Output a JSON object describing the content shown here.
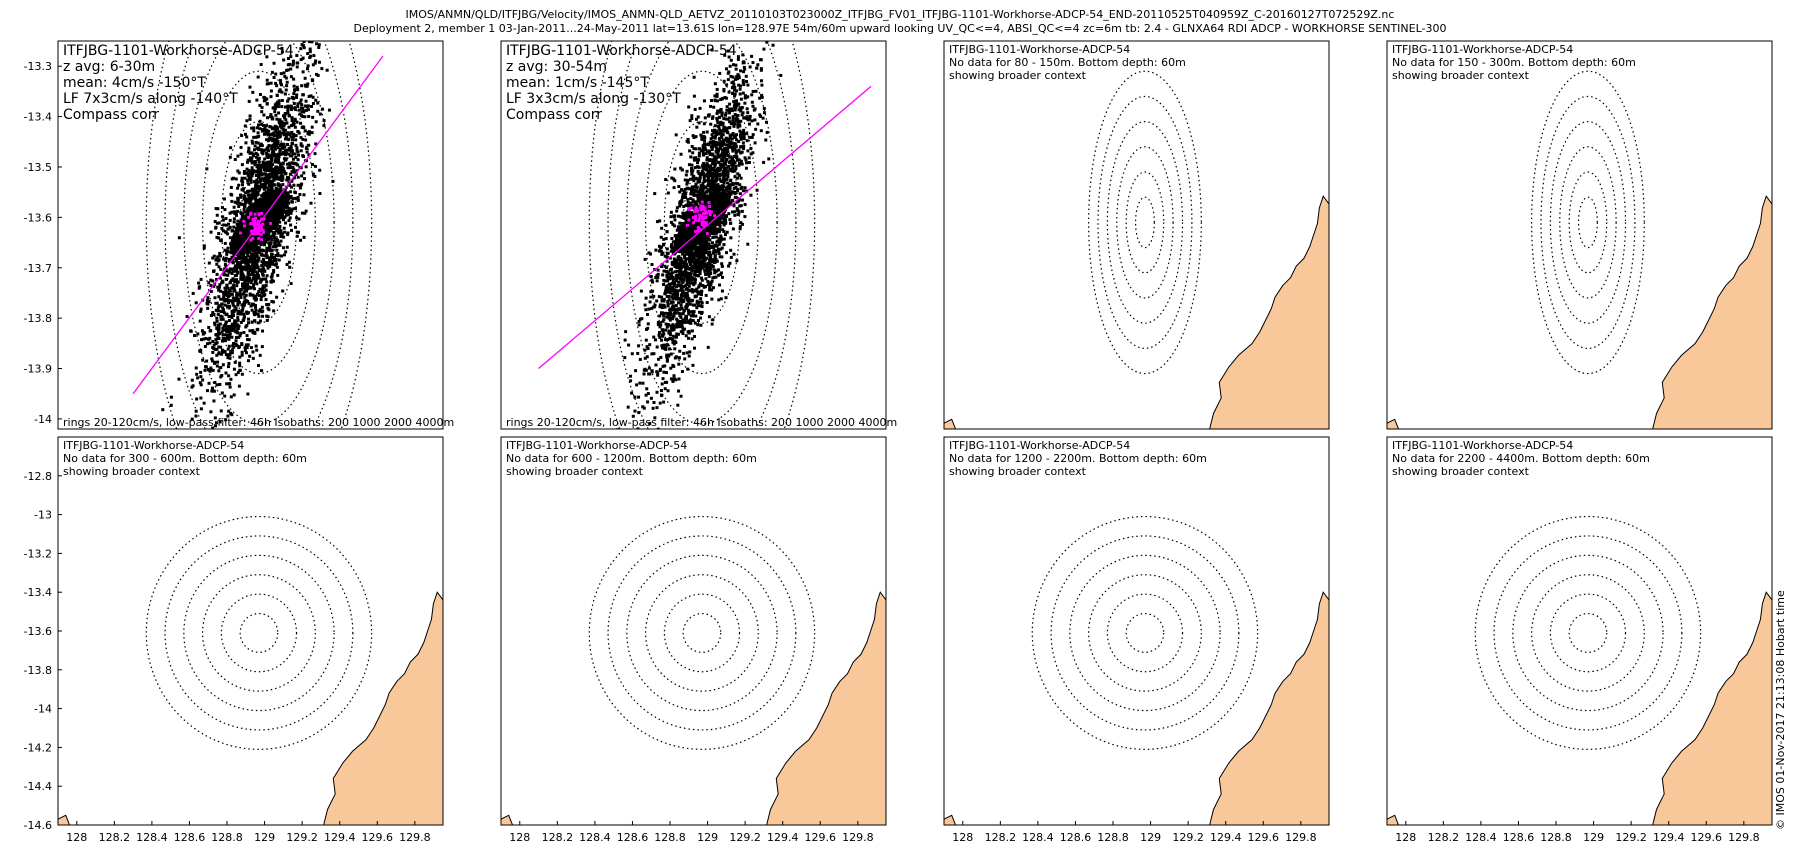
{
  "header": {
    "line1": "IMOS/ANMN/QLD/ITFJBG/Velocity/IMOS_ANMN-QLD_AETVZ_20110103T023000Z_ITFJBG_FV01_ITFJBG-1101-Workhorse-ADCP-54_END-20110525T040959Z_C-20160127T072529Z.nc",
    "line2": "Deployment 2, member 1 03-Jan-2011...24-May-2011 lat=13.61S lon=128.97E 54m/60m upward looking UV_QC<=4, ABSI_QC<=4 zc=6m tb: 2.4 - GLNXA64 RDI ADCP - WORKHORSE SENTINEL-300"
  },
  "credit": "© IMOS 01-Nov-2017 21:13:08 Hobart time",
  "colors": {
    "land": "#f9c89a",
    "vector": "#ff00ff",
    "scatter": "#000000",
    "rings": "#000000"
  },
  "chart_data": [
    {
      "type": "scatter",
      "row": 0,
      "col": 0,
      "title": "ITFJBG-1101-Workhorse-ADCP-54",
      "lines": [
        "z avg: 6-30m",
        "mean: 4cm/s -150°T",
        "LF 7x3cm/s along -140°T",
        "Compass corr"
      ],
      "footer": "rings 20-120cm/s, low-pass filter: 46h Isobaths: 200 1000 2000 4000m",
      "xlim": [
        127.9,
        129.95
      ],
      "ylim": [
        -14.02,
        -13.25
      ],
      "yticks": [
        -13.3,
        -13.4,
        -13.5,
        -13.6,
        -13.7,
        -13.8,
        -13.9,
        -14
      ],
      "xticks": [],
      "center": [
        128.97,
        -13.61
      ],
      "ring_radii_deg": [
        0.1,
        0.2,
        0.3,
        0.4,
        0.5,
        0.6
      ],
      "ellipse": {
        "major": 0.42,
        "minor": 0.16,
        "angle_deg": -50
      },
      "principal_axis": {
        "x": [
          128.3,
          129.63
        ],
        "y": [
          -13.95,
          -13.28
        ]
      },
      "mean_cluster": {
        "x": 128.96,
        "y": -13.62
      },
      "show_land": false
    },
    {
      "type": "scatter",
      "row": 0,
      "col": 1,
      "title": "ITFJBG-1101-Workhorse-ADCP-54",
      "lines": [
        "z avg: 30-54m",
        "mean: 1cm/s -145°T",
        "LF 3x3cm/s along -130°T",
        "Compass corr"
      ],
      "footer": "rings 20-120cm/s, low-pass filter: 46h Isobaths: 200 1000 2000 4000m",
      "xlim": [
        127.9,
        129.95
      ],
      "ylim": [
        -14.02,
        -13.25
      ],
      "yticks": [],
      "xticks": [],
      "center": [
        128.97,
        -13.61
      ],
      "ring_radii_deg": [
        0.1,
        0.2,
        0.3,
        0.4,
        0.5,
        0.6
      ],
      "ellipse": {
        "major": 0.4,
        "minor": 0.14,
        "angle_deg": -48
      },
      "principal_axis": {
        "x": [
          128.1,
          129.87
        ],
        "y": [
          -13.9,
          -13.34
        ]
      },
      "mean_cluster": {
        "x": 128.96,
        "y": -13.6
      },
      "show_land": false
    },
    {
      "type": "map",
      "row": 0,
      "col": 2,
      "title": "ITFJBG-1101-Workhorse-ADCP-54",
      "lines": [
        "No data for 80 - 150m. Bottom depth: 60m",
        "showing broader context"
      ],
      "footer": "",
      "xlim": [
        127.9,
        129.95
      ],
      "ylim": [
        -14.02,
        -13.25
      ],
      "yticks": [],
      "xticks": [],
      "center": [
        128.97,
        -13.61
      ],
      "ring_radii_deg": [
        0.05,
        0.1,
        0.15,
        0.2,
        0.25,
        0.3
      ],
      "show_land": true
    },
    {
      "type": "map",
      "row": 0,
      "col": 3,
      "title": "ITFJBG-1101-Workhorse-ADCP-54",
      "lines": [
        "No data for 150 - 300m. Bottom depth: 60m",
        "showing broader context"
      ],
      "footer": "",
      "xlim": [
        127.9,
        129.95
      ],
      "ylim": [
        -14.02,
        -13.25
      ],
      "yticks": [],
      "xticks": [],
      "center": [
        128.97,
        -13.61
      ],
      "ring_radii_deg": [
        0.05,
        0.1,
        0.15,
        0.2,
        0.25,
        0.3
      ],
      "show_land": true
    },
    {
      "type": "map",
      "row": 1,
      "col": 0,
      "title": "ITFJBG-1101-Workhorse-ADCP-54",
      "lines": [
        "No data for 300 - 600m. Bottom depth: 60m",
        "showing broader context"
      ],
      "footer": "",
      "xlim": [
        127.9,
        129.95
      ],
      "ylim": [
        -14.6,
        -12.6
      ],
      "yticks": [
        -12.8,
        -13,
        -13.2,
        -13.4,
        -13.6,
        -13.8,
        -14,
        -14.2,
        -14.4,
        -14.6
      ],
      "xticks": [
        128,
        128.2,
        128.4,
        128.6,
        128.8,
        129,
        129.2,
        129.4,
        129.6,
        129.8
      ],
      "center": [
        128.97,
        -13.61
      ],
      "ring_radii_deg": [
        0.1,
        0.2,
        0.3,
        0.4,
        0.5,
        0.6
      ],
      "show_land": true
    },
    {
      "type": "map",
      "row": 1,
      "col": 1,
      "title": "ITFJBG-1101-Workhorse-ADCP-54",
      "lines": [
        "No data for 600 - 1200m. Bottom depth: 60m",
        "showing broader context"
      ],
      "footer": "",
      "xlim": [
        127.9,
        129.95
      ],
      "ylim": [
        -14.6,
        -12.6
      ],
      "yticks": [],
      "xticks": [
        128,
        128.2,
        128.4,
        128.6,
        128.8,
        129,
        129.2,
        129.4,
        129.6,
        129.8
      ],
      "center": [
        128.97,
        -13.61
      ],
      "ring_radii_deg": [
        0.1,
        0.2,
        0.3,
        0.4,
        0.5,
        0.6
      ],
      "show_land": true
    },
    {
      "type": "map",
      "row": 1,
      "col": 2,
      "title": "ITFJBG-1101-Workhorse-ADCP-54",
      "lines": [
        "No data for 1200 - 2200m. Bottom depth: 60m",
        "showing broader context"
      ],
      "footer": "",
      "xlim": [
        127.9,
        129.95
      ],
      "ylim": [
        -14.6,
        -12.6
      ],
      "yticks": [],
      "xticks": [
        128,
        128.2,
        128.4,
        128.6,
        128.8,
        129,
        129.2,
        129.4,
        129.6,
        129.8
      ],
      "center": [
        128.97,
        -13.61
      ],
      "ring_radii_deg": [
        0.1,
        0.2,
        0.3,
        0.4,
        0.5,
        0.6
      ],
      "show_land": true
    },
    {
      "type": "map",
      "row": 1,
      "col": 3,
      "title": "ITFJBG-1101-Workhorse-ADCP-54",
      "lines": [
        "No data for 2200 - 4400m. Bottom depth: 60m",
        "showing broader context"
      ],
      "footer": "",
      "xlim": [
        127.9,
        129.95
      ],
      "ylim": [
        -14.6,
        -12.6
      ],
      "yticks": [],
      "xticks": [
        128,
        128.2,
        128.4,
        128.6,
        128.8,
        129,
        129.2,
        129.4,
        129.6,
        129.8
      ],
      "center": [
        128.97,
        -13.61
      ],
      "ring_radii_deg": [
        0.1,
        0.2,
        0.3,
        0.4,
        0.5,
        0.6
      ],
      "show_land": true
    }
  ]
}
